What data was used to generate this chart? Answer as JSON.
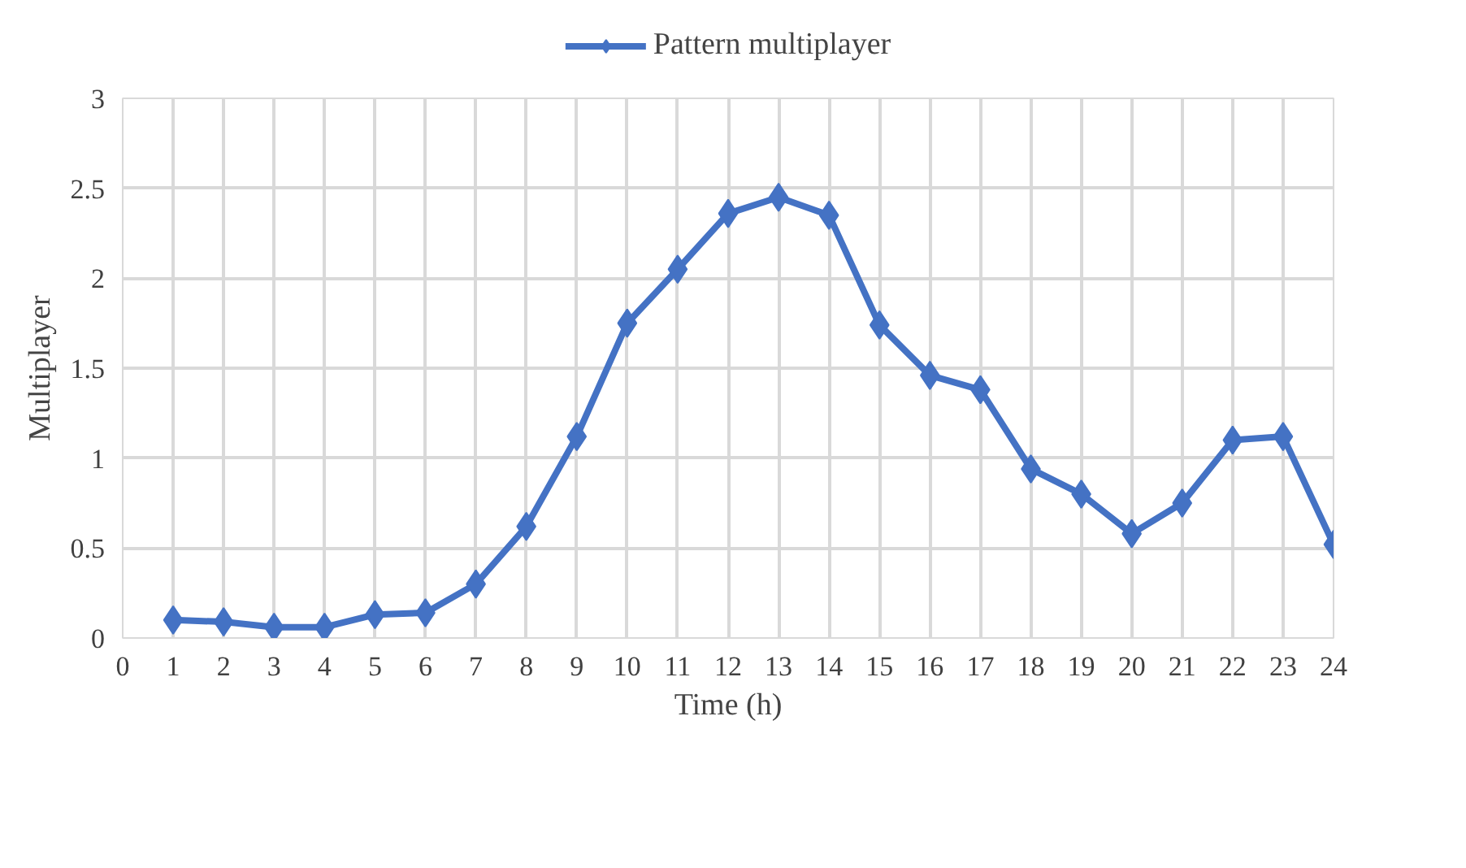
{
  "chart_data": {
    "type": "line",
    "xlabel": "Time (h)",
    "ylabel": "Multiplayer",
    "x": [
      1,
      2,
      3,
      4,
      5,
      6,
      7,
      8,
      9,
      10,
      11,
      12,
      13,
      14,
      15,
      16,
      17,
      18,
      19,
      20,
      21,
      22,
      23,
      24
    ],
    "series": [
      {
        "name": "Pattern multiplayer",
        "color": "#4472c4",
        "values": [
          0.1,
          0.09,
          0.06,
          0.06,
          0.13,
          0.14,
          0.3,
          0.62,
          1.12,
          1.75,
          2.05,
          2.36,
          2.45,
          2.35,
          1.74,
          1.46,
          1.38,
          0.94,
          0.8,
          0.58,
          0.75,
          1.1,
          1.12,
          0.52
        ]
      }
    ],
    "xlim": [
      0,
      24
    ],
    "xticks": [
      0,
      1,
      2,
      3,
      4,
      5,
      6,
      7,
      8,
      9,
      10,
      11,
      12,
      13,
      14,
      15,
      16,
      17,
      18,
      19,
      20,
      21,
      22,
      23,
      24
    ],
    "ylim": [
      0,
      3
    ],
    "yticks": [
      0,
      0.5,
      1,
      1.5,
      2,
      2.5,
      3
    ],
    "grid": true,
    "legend": "top",
    "marker": "diamond",
    "line_style": "solid"
  }
}
